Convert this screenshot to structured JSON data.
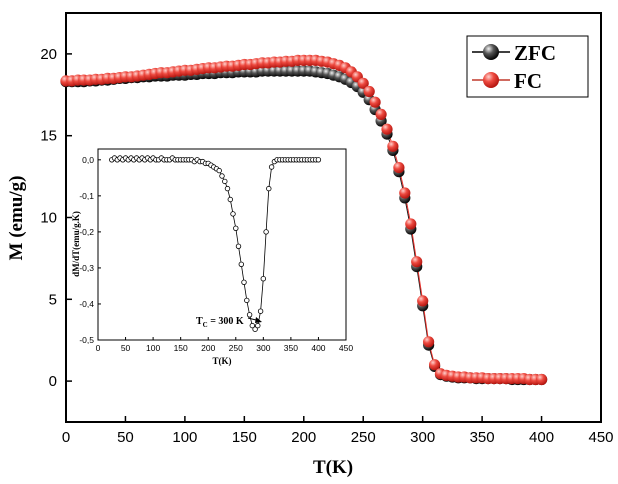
{
  "chart_data": [
    {
      "type": "scatter",
      "panel": "main",
      "xlabel": "T(K)",
      "ylabel": "M (emu/g)",
      "xlim": [
        0,
        450
      ],
      "ylim": [
        -2.5,
        22.5
      ],
      "xticks": [
        "0",
        "50",
        "100",
        "150",
        "200",
        "250",
        "300",
        "350",
        "400",
        "450"
      ],
      "yticks": [
        "0",
        "5",
        "10",
        "15",
        "20"
      ],
      "legend_position": "top-right",
      "series": [
        {
          "name": "ZFC",
          "color": "#1a1a1a",
          "x": [
            0,
            5,
            10,
            15,
            20,
            25,
            30,
            35,
            40,
            45,
            50,
            55,
            60,
            65,
            70,
            75,
            80,
            85,
            90,
            95,
            100,
            105,
            110,
            115,
            120,
            125,
            130,
            135,
            140,
            145,
            150,
            155,
            160,
            165,
            170,
            175,
            180,
            185,
            190,
            195,
            200,
            205,
            210,
            215,
            220,
            225,
            230,
            235,
            240,
            245,
            250,
            255,
            260,
            265,
            270,
            275,
            280,
            285,
            290,
            295,
            300,
            305,
            310,
            315,
            320,
            325,
            330,
            335,
            340,
            345,
            350,
            355,
            360,
            365,
            370,
            375,
            380,
            385,
            390,
            395,
            400
          ],
          "y": [
            18.3,
            18.3,
            18.3,
            18.3,
            18.35,
            18.35,
            18.4,
            18.4,
            18.45,
            18.5,
            18.5,
            18.55,
            18.55,
            18.6,
            18.6,
            18.65,
            18.65,
            18.65,
            18.7,
            18.7,
            18.7,
            18.75,
            18.75,
            18.8,
            18.8,
            18.8,
            18.85,
            18.85,
            18.85,
            18.9,
            18.9,
            18.9,
            18.9,
            18.95,
            18.95,
            18.95,
            18.95,
            18.95,
            18.95,
            18.95,
            18.95,
            18.95,
            18.9,
            18.85,
            18.8,
            18.7,
            18.6,
            18.45,
            18.25,
            18.0,
            17.65,
            17.2,
            16.6,
            15.9,
            15.1,
            14.1,
            12.8,
            11.2,
            9.3,
            7.0,
            4.6,
            2.2,
            0.9,
            0.4,
            0.3,
            0.25,
            0.2,
            0.2,
            0.2,
            0.15,
            0.15,
            0.15,
            0.15,
            0.15,
            0.15,
            0.1,
            0.1,
            0.1,
            0.1,
            0.1,
            0.1
          ]
        },
        {
          "name": "FC",
          "color": "#e8302a",
          "x": [
            0,
            5,
            10,
            15,
            20,
            25,
            30,
            35,
            40,
            45,
            50,
            55,
            60,
            65,
            70,
            75,
            80,
            85,
            90,
            95,
            100,
            105,
            110,
            115,
            120,
            125,
            130,
            135,
            140,
            145,
            150,
            155,
            160,
            165,
            170,
            175,
            180,
            185,
            190,
            195,
            200,
            205,
            210,
            215,
            220,
            225,
            230,
            235,
            240,
            245,
            250,
            255,
            260,
            265,
            270,
            275,
            280,
            285,
            290,
            295,
            300,
            305,
            310,
            315,
            320,
            325,
            330,
            335,
            340,
            345,
            350,
            355,
            360,
            365,
            370,
            375,
            380,
            385,
            390,
            395,
            400
          ],
          "y": [
            18.35,
            18.35,
            18.4,
            18.4,
            18.4,
            18.45,
            18.45,
            18.5,
            18.5,
            18.55,
            18.6,
            18.6,
            18.65,
            18.7,
            18.75,
            18.8,
            18.85,
            18.85,
            18.9,
            18.95,
            19.0,
            19.0,
            19.05,
            19.1,
            19.15,
            19.15,
            19.2,
            19.25,
            19.25,
            19.3,
            19.35,
            19.35,
            19.4,
            19.45,
            19.45,
            19.5,
            19.5,
            19.55,
            19.55,
            19.6,
            19.6,
            19.6,
            19.6,
            19.55,
            19.5,
            19.4,
            19.3,
            19.15,
            18.9,
            18.6,
            18.2,
            17.7,
            17.05,
            16.3,
            15.4,
            14.35,
            13.05,
            11.5,
            9.6,
            7.3,
            4.9,
            2.4,
            1.0,
            0.45,
            0.35,
            0.3,
            0.25,
            0.25,
            0.2,
            0.2,
            0.2,
            0.15,
            0.15,
            0.15,
            0.15,
            0.15,
            0.15,
            0.15,
            0.1,
            0.1,
            0.1
          ]
        }
      ]
    },
    {
      "type": "scatter",
      "panel": "inset",
      "xlabel": "T(K)",
      "ylabel": "dM/dT(emu/g.K)",
      "xlim": [
        0,
        450
      ],
      "ylim": [
        -0.5,
        0.03
      ],
      "xticks": [
        "0",
        "50",
        "100",
        "150",
        "200",
        "250",
        "300",
        "350",
        "400",
        "450"
      ],
      "yticks": [
        "0,0",
        "-0,1",
        "-0,2",
        "-0,3",
        "-0,4",
        "-0,5"
      ],
      "annotation": {
        "text": "T",
        "subscript": "C",
        "suffix": " = 300 K",
        "x": 300,
        "y": -0.47
      },
      "series": [
        {
          "x": [
            25,
            30,
            35,
            40,
            45,
            50,
            55,
            60,
            65,
            70,
            75,
            80,
            85,
            90,
            95,
            100,
            105,
            110,
            115,
            120,
            125,
            130,
            135,
            140,
            145,
            150,
            155,
            160,
            165,
            170,
            175,
            180,
            185,
            190,
            195,
            200,
            205,
            210,
            215,
            220,
            225,
            230,
            235,
            240,
            245,
            250,
            255,
            260,
            265,
            270,
            275,
            280,
            285,
            290,
            295,
            300,
            305,
            310,
            315,
            320,
            325,
            330,
            335,
            340,
            345,
            350,
            355,
            360,
            365,
            370,
            375,
            380,
            385,
            390,
            395,
            400
          ],
          "y": [
            0.0,
            0.005,
            0.0,
            0.005,
            0.0,
            0.005,
            0.0,
            0.005,
            0.0,
            0.005,
            0.0,
            0.005,
            0.0,
            0.005,
            0.0,
            0.005,
            0.0,
            0.0,
            0.005,
            0.0,
            0.0,
            0.0,
            0.005,
            0.0,
            0.0,
            0.0,
            0.0,
            0.0,
            0.0,
            0.0,
            -0.005,
            0.0,
            -0.005,
            -0.005,
            -0.01,
            -0.01,
            -0.015,
            -0.02,
            -0.025,
            -0.03,
            -0.045,
            -0.06,
            -0.08,
            -0.11,
            -0.15,
            -0.19,
            -0.24,
            -0.29,
            -0.34,
            -0.39,
            -0.43,
            -0.46,
            -0.47,
            -0.46,
            -0.42,
            -0.33,
            -0.2,
            -0.08,
            -0.02,
            -0.005,
            0.0,
            0.0,
            0.0,
            0.0,
            0.0,
            0.0,
            0.0,
            0.0,
            0.0,
            0.0,
            0.0,
            0.0,
            0.0,
            0.0,
            0.0,
            0.0
          ]
        }
      ]
    }
  ]
}
